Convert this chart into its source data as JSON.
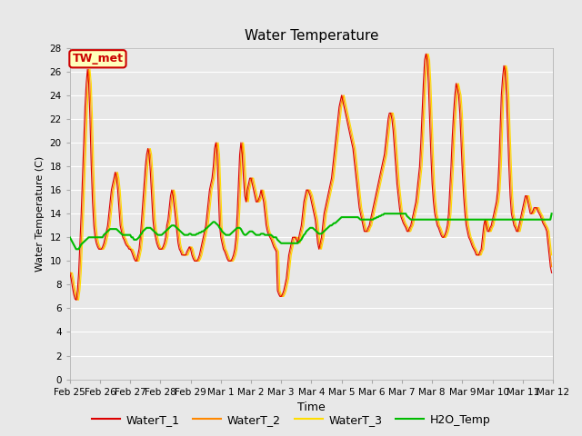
{
  "title": "Water Temperature",
  "xlabel": "Time",
  "ylabel": "Water Temperature (C)",
  "ylim": [
    0,
    28
  ],
  "yticks": [
    0,
    2,
    4,
    6,
    8,
    10,
    12,
    14,
    16,
    18,
    20,
    22,
    24,
    26,
    28
  ],
  "line_colors": {
    "WaterT_1": "#dd0000",
    "WaterT_2": "#ff8800",
    "WaterT_3": "#ffdd00",
    "H2O_Temp": "#00bb00"
  },
  "annotation": {
    "text": "TW_met",
    "bg_color": "#ffffbb",
    "border_color": "#cc0000",
    "text_color": "#cc0000"
  },
  "WaterT_1": [
    9.0,
    8.5,
    7.8,
    7.2,
    6.8,
    6.7,
    7.5,
    9.0,
    11.5,
    14.0,
    17.0,
    20.0,
    23.0,
    25.0,
    26.2,
    25.0,
    22.0,
    18.0,
    15.0,
    13.0,
    12.0,
    11.5,
    11.2,
    11.0,
    11.0,
    11.0,
    11.2,
    11.5,
    12.0,
    12.5,
    13.0,
    14.0,
    15.0,
    16.0,
    16.5,
    17.0,
    17.5,
    17.0,
    16.0,
    14.5,
    13.0,
    12.5,
    12.0,
    11.8,
    11.5,
    11.3,
    11.2,
    11.0,
    11.0,
    10.8,
    10.5,
    10.2,
    10.0,
    10.0,
    10.5,
    11.0,
    12.0,
    13.5,
    15.0,
    16.5,
    18.0,
    19.0,
    19.5,
    19.0,
    17.5,
    15.5,
    13.5,
    12.5,
    12.0,
    11.5,
    11.2,
    11.0,
    11.0,
    11.0,
    11.2,
    11.5,
    12.0,
    13.0,
    13.5,
    14.5,
    15.5,
    16.0,
    15.5,
    14.5,
    13.5,
    12.5,
    11.5,
    11.0,
    10.8,
    10.5,
    10.5,
    10.5,
    10.5,
    10.8,
    11.0,
    11.2,
    11.0,
    10.5,
    10.2,
    10.0,
    10.0,
    10.0,
    10.2,
    10.5,
    11.0,
    11.5,
    12.0,
    12.5,
    13.0,
    14.0,
    15.0,
    16.0,
    16.5,
    17.0,
    18.0,
    19.5,
    20.0,
    19.0,
    16.0,
    13.0,
    12.0,
    11.5,
    11.0,
    10.8,
    10.5,
    10.2,
    10.0,
    10.0,
    10.0,
    10.2,
    10.5,
    11.0,
    12.0,
    14.0,
    16.5,
    19.0,
    20.0,
    19.0,
    17.0,
    15.5,
    15.0,
    16.0,
    16.5,
    17.0,
    17.0,
    16.5,
    16.0,
    15.5,
    15.0,
    15.0,
    15.2,
    15.5,
    16.0,
    15.5,
    15.0,
    14.0,
    13.0,
    12.5,
    12.2,
    12.0,
    11.8,
    11.5,
    11.2,
    11.0,
    10.8,
    7.5,
    7.2,
    7.0,
    7.0,
    7.2,
    7.5,
    8.0,
    8.5,
    9.5,
    10.5,
    11.0,
    11.5,
    12.0,
    12.0,
    12.0,
    11.8,
    11.5,
    12.0,
    12.5,
    13.0,
    14.0,
    15.0,
    15.5,
    16.0,
    16.0,
    15.8,
    15.5,
    15.0,
    14.5,
    14.0,
    13.5,
    12.5,
    11.5,
    11.0,
    11.5,
    12.0,
    13.0,
    14.0,
    14.5,
    15.0,
    15.5,
    16.0,
    16.5,
    17.0,
    18.0,
    19.0,
    20.0,
    21.0,
    22.0,
    23.0,
    23.5,
    24.0,
    23.5,
    23.0,
    22.5,
    22.0,
    21.5,
    21.0,
    20.5,
    20.0,
    19.5,
    18.5,
    17.5,
    16.5,
    15.5,
    14.5,
    14.0,
    13.5,
    13.0,
    12.5,
    12.5,
    12.5,
    12.8,
    13.0,
    13.5,
    14.0,
    14.5,
    15.0,
    15.5,
    16.0,
    16.5,
    17.0,
    17.5,
    18.0,
    18.5,
    19.0,
    20.0,
    21.0,
    22.0,
    22.5,
    22.5,
    22.0,
    21.0,
    19.5,
    18.0,
    16.5,
    15.5,
    14.5,
    13.8,
    13.5,
    13.2,
    13.0,
    12.8,
    12.5,
    12.5,
    12.8,
    13.0,
    13.5,
    14.0,
    14.5,
    15.0,
    16.0,
    17.0,
    18.0,
    20.0,
    22.5,
    25.0,
    27.0,
    27.5,
    27.0,
    25.0,
    22.0,
    19.0,
    16.5,
    15.0,
    14.0,
    13.5,
    13.0,
    12.8,
    12.5,
    12.2,
    12.0,
    12.0,
    12.2,
    12.5,
    13.0,
    14.0,
    16.0,
    18.0,
    20.5,
    22.5,
    24.0,
    25.0,
    24.5,
    24.0,
    22.5,
    20.0,
    17.5,
    15.5,
    14.0,
    13.0,
    12.5,
    12.0,
    11.8,
    11.5,
    11.2,
    11.0,
    10.8,
    10.5,
    10.5,
    10.5,
    10.8,
    11.0,
    12.0,
    13.0,
    13.5,
    13.0,
    12.5,
    12.5,
    12.8,
    13.0,
    13.5,
    14.0,
    14.5,
    15.0,
    16.0,
    18.0,
    21.0,
    24.0,
    25.5,
    26.5,
    26.0,
    24.0,
    21.0,
    18.0,
    15.5,
    14.0,
    13.5,
    13.0,
    12.8,
    12.5,
    12.5,
    13.0,
    13.5,
    14.0,
    14.5,
    15.0,
    15.5,
    15.5,
    15.0,
    14.5,
    14.0,
    14.0,
    14.2,
    14.5,
    14.5,
    14.5,
    14.2,
    14.0,
    13.8,
    13.5,
    13.2,
    13.0,
    12.8,
    12.5,
    11.5,
    10.5,
    9.5,
    9.0
  ],
  "H2O_Temp": [
    12.0,
    11.8,
    11.6,
    11.4,
    11.2,
    11.0,
    11.0,
    11.0,
    11.2,
    11.4,
    11.5,
    11.6,
    11.7,
    11.8,
    11.9,
    12.0,
    12.0,
    12.0,
    12.0,
    12.0,
    12.0,
    12.0,
    12.0,
    12.0,
    12.0,
    12.0,
    12.0,
    12.2,
    12.3,
    12.4,
    12.5,
    12.6,
    12.7,
    12.7,
    12.7,
    12.7,
    12.7,
    12.7,
    12.6,
    12.5,
    12.4,
    12.3,
    12.2,
    12.2,
    12.2,
    12.2,
    12.2,
    12.2,
    12.2,
    12.0,
    12.0,
    11.8,
    11.8,
    11.8,
    11.9,
    12.0,
    12.2,
    12.3,
    12.5,
    12.6,
    12.7,
    12.8,
    12.8,
    12.8,
    12.8,
    12.7,
    12.6,
    12.5,
    12.4,
    12.3,
    12.2,
    12.2,
    12.2,
    12.2,
    12.3,
    12.4,
    12.5,
    12.6,
    12.7,
    12.8,
    12.9,
    13.0,
    13.0,
    13.0,
    12.9,
    12.8,
    12.7,
    12.6,
    12.5,
    12.4,
    12.3,
    12.2,
    12.2,
    12.2,
    12.2,
    12.3,
    12.3,
    12.2,
    12.2,
    12.2,
    12.2,
    12.3,
    12.3,
    12.4,
    12.4,
    12.5,
    12.5,
    12.6,
    12.7,
    12.8,
    12.9,
    13.0,
    13.1,
    13.2,
    13.3,
    13.3,
    13.2,
    13.1,
    13.0,
    12.8,
    12.7,
    12.5,
    12.4,
    12.3,
    12.2,
    12.2,
    12.2,
    12.2,
    12.3,
    12.4,
    12.5,
    12.6,
    12.7,
    12.8,
    12.8,
    12.8,
    12.7,
    12.5,
    12.3,
    12.2,
    12.2,
    12.3,
    12.4,
    12.5,
    12.5,
    12.5,
    12.4,
    12.3,
    12.2,
    12.2,
    12.2,
    12.2,
    12.3,
    12.3,
    12.3,
    12.2,
    12.2,
    12.2,
    12.2,
    12.2,
    12.2,
    12.1,
    12.0,
    12.0,
    12.0,
    11.8,
    11.7,
    11.6,
    11.5,
    11.5,
    11.5,
    11.5,
    11.5,
    11.5,
    11.5,
    11.5,
    11.5,
    11.5,
    11.5,
    11.5,
    11.5,
    11.5,
    11.6,
    11.7,
    11.8,
    12.0,
    12.2,
    12.3,
    12.5,
    12.6,
    12.7,
    12.8,
    12.8,
    12.8,
    12.7,
    12.6,
    12.5,
    12.4,
    12.3,
    12.3,
    12.3,
    12.4,
    12.5,
    12.6,
    12.7,
    12.8,
    12.9,
    13.0,
    13.0,
    13.1,
    13.2,
    13.2,
    13.3,
    13.4,
    13.5,
    13.6,
    13.7,
    13.7,
    13.7,
    13.7,
    13.7,
    13.7,
    13.7,
    13.7,
    13.7,
    13.7,
    13.7,
    13.7,
    13.7,
    13.7,
    13.6,
    13.5,
    13.5,
    13.5,
    13.5,
    13.5,
    13.5,
    13.5,
    13.5,
    13.5,
    13.5,
    13.5,
    13.6,
    13.6,
    13.7,
    13.7,
    13.8,
    13.8,
    13.9,
    13.9,
    14.0,
    14.0,
    14.0,
    14.0,
    14.0,
    14.0,
    14.0,
    14.0,
    14.0,
    14.0,
    14.0,
    14.0,
    14.0,
    14.0,
    14.0,
    14.0,
    14.0,
    14.0,
    13.8,
    13.7,
    13.6,
    13.5,
    13.5,
    13.5,
    13.5,
    13.5,
    13.5,
    13.5,
    13.5,
    13.5,
    13.5,
    13.5,
    13.5,
    13.5,
    13.5,
    13.5,
    13.5,
    13.5,
    13.5,
    13.5,
    13.5,
    13.5,
    13.5,
    13.5,
    13.5,
    13.5,
    13.5,
    13.5,
    13.5,
    13.5,
    13.5,
    13.5,
    13.5,
    13.5,
    13.5,
    13.5,
    13.5,
    13.5,
    13.5,
    13.5,
    13.5,
    13.5,
    13.5,
    13.5,
    13.5,
    13.5,
    13.5,
    13.5,
    13.5,
    13.5,
    13.5,
    13.5,
    13.5,
    13.5,
    13.5,
    13.5,
    13.5,
    13.5,
    13.5,
    13.5,
    13.5,
    13.5,
    13.5,
    13.5,
    13.5,
    13.5,
    13.5,
    13.5,
    13.5,
    13.5,
    13.5,
    13.5,
    13.5,
    13.5,
    13.5,
    13.5,
    13.5,
    13.5,
    13.5,
    13.5,
    13.5,
    13.5,
    13.5,
    13.5,
    13.5,
    13.5,
    13.5,
    13.5,
    13.5,
    13.5,
    13.5,
    13.5,
    13.5,
    13.5,
    13.5,
    13.5,
    13.5,
    13.5,
    13.5,
    13.5,
    13.5,
    13.5,
    13.5,
    13.5,
    13.5,
    13.5,
    13.5,
    13.5,
    13.5,
    13.5,
    13.5,
    13.5,
    13.5,
    14.0
  ]
}
